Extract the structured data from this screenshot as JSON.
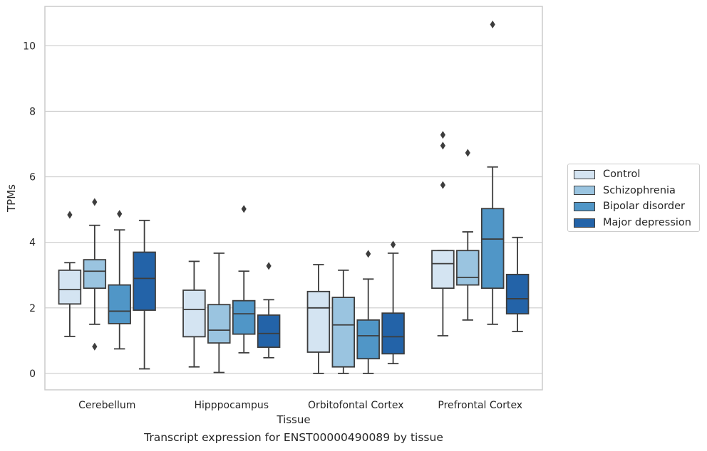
{
  "caption": "Transcript expression for ENST00000490089 by tissue",
  "chart_data": {
    "type": "box",
    "xlabel": "Tissue",
    "ylabel": "TPMs",
    "ylim": [
      -0.5,
      11.2
    ],
    "yticks": [
      0,
      2,
      4,
      6,
      8,
      10
    ],
    "categories": [
      "Cerebellum",
      "Hipppocampus",
      "Orbitofontal Cortex",
      "Prefrontal Cortex"
    ],
    "grid": "horizontal",
    "legend_position": "right",
    "series": [
      {
        "name": "Control",
        "color": "#d4e4f2",
        "boxes": [
          {
            "whisker_low": 1.13,
            "q1": 2.12,
            "median": 2.56,
            "q3": 3.15,
            "whisker_high": 3.38,
            "outliers": [
              4.84
            ]
          },
          {
            "whisker_low": 0.2,
            "q1": 1.12,
            "median": 1.95,
            "q3": 2.54,
            "whisker_high": 3.42,
            "outliers": []
          },
          {
            "whisker_low": 0.0,
            "q1": 0.65,
            "median": 2.0,
            "q3": 2.5,
            "whisker_high": 3.32,
            "outliers": []
          },
          {
            "whisker_low": 1.15,
            "q1": 2.6,
            "median": 3.35,
            "q3": 3.75,
            "whisker_high": 3.75,
            "outliers": [
              5.75,
              6.95,
              7.28
            ]
          }
        ]
      },
      {
        "name": "Schizophrenia",
        "color": "#9ac4e0",
        "boxes": [
          {
            "whisker_low": 1.5,
            "q1": 2.6,
            "median": 3.12,
            "q3": 3.47,
            "whisker_high": 4.52,
            "outliers": [
              0.82,
              5.23
            ]
          },
          {
            "whisker_low": 0.03,
            "q1": 0.93,
            "median": 1.32,
            "q3": 2.1,
            "whisker_high": 3.67,
            "outliers": []
          },
          {
            "whisker_low": 0.0,
            "q1": 0.2,
            "median": 1.48,
            "q3": 2.32,
            "whisker_high": 3.15,
            "outliers": []
          },
          {
            "whisker_low": 1.63,
            "q1": 2.7,
            "median": 2.93,
            "q3": 3.75,
            "whisker_high": 4.32,
            "outliers": [
              6.73
            ]
          }
        ]
      },
      {
        "name": "Bipolar disorder",
        "color": "#5096c7",
        "boxes": [
          {
            "whisker_low": 0.75,
            "q1": 1.52,
            "median": 1.9,
            "q3": 2.7,
            "whisker_high": 4.38,
            "outliers": [
              4.87
            ]
          },
          {
            "whisker_low": 0.63,
            "q1": 1.2,
            "median": 1.82,
            "q3": 2.22,
            "whisker_high": 3.12,
            "outliers": [
              5.02
            ]
          },
          {
            "whisker_low": 0.0,
            "q1": 0.45,
            "median": 1.15,
            "q3": 1.63,
            "whisker_high": 2.88,
            "outliers": [
              3.65
            ]
          },
          {
            "whisker_low": 1.5,
            "q1": 2.6,
            "median": 4.1,
            "q3": 5.03,
            "whisker_high": 6.3,
            "outliers": [
              10.65
            ]
          }
        ]
      },
      {
        "name": "Major depression",
        "color": "#2363a8",
        "boxes": [
          {
            "whisker_low": 0.14,
            "q1": 1.93,
            "median": 2.9,
            "q3": 3.7,
            "whisker_high": 4.67,
            "outliers": []
          },
          {
            "whisker_low": 0.48,
            "q1": 0.8,
            "median": 1.22,
            "q3": 1.78,
            "whisker_high": 2.25,
            "outliers": [
              3.28
            ]
          },
          {
            "whisker_low": 0.3,
            "q1": 0.6,
            "median": 1.12,
            "q3": 1.84,
            "whisker_high": 3.67,
            "outliers": [
              3.93
            ]
          },
          {
            "whisker_low": 1.28,
            "q1": 1.82,
            "median": 2.28,
            "q3": 3.02,
            "whisker_high": 4.15,
            "outliers": []
          }
        ]
      }
    ]
  }
}
